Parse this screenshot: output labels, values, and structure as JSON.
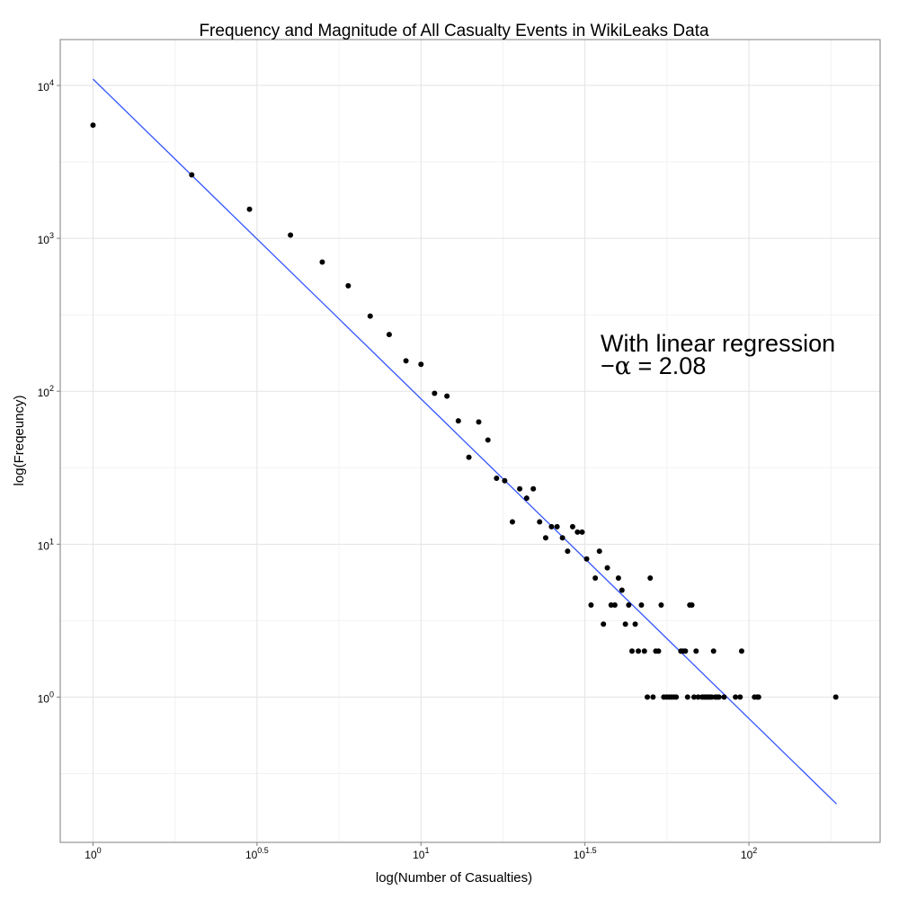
{
  "chart_data": {
    "type": "scatter",
    "title": "Frequency and Magnitude of All Casualty Events in WikiLeaks Data",
    "xlabel": "log(Number of Casualties)",
    "ylabel": "log(Freqeuncy)",
    "x_scale": "log10",
    "y_scale": "log10",
    "xlim_log10": [
      -0.1,
      2.4
    ],
    "ylim_log10": [
      -0.95,
      4.3
    ],
    "grid": true,
    "x_ticks": [
      {
        "exp": 0,
        "base": "10",
        "power": "0"
      },
      {
        "exp": 0.5,
        "base": "10",
        "power": "0.5"
      },
      {
        "exp": 1,
        "base": "10",
        "power": "1"
      },
      {
        "exp": 1.5,
        "base": "10",
        "power": "1.5"
      },
      {
        "exp": 2,
        "base": "10",
        "power": "2"
      }
    ],
    "y_ticks": [
      {
        "exp": 0,
        "base": "10",
        "power": "0"
      },
      {
        "exp": 1,
        "base": "10",
        "power": "1"
      },
      {
        "exp": 2,
        "base": "10",
        "power": "2"
      },
      {
        "exp": 3,
        "base": "10",
        "power": "3"
      },
      {
        "exp": 4,
        "base": "10",
        "power": "4"
      }
    ],
    "points": [
      [
        1,
        5500
      ],
      [
        2,
        2600
      ],
      [
        3,
        1550
      ],
      [
        4,
        1050
      ],
      [
        5,
        700
      ],
      [
        6,
        490
      ],
      [
        7,
        310
      ],
      [
        8,
        235
      ],
      [
        9,
        158
      ],
      [
        10,
        150
      ],
      [
        11,
        97
      ],
      [
        12,
        93
      ],
      [
        13,
        64
      ],
      [
        14,
        37
      ],
      [
        15,
        63
      ],
      [
        16,
        48
      ],
      [
        17,
        27
      ],
      [
        18,
        26
      ],
      [
        19,
        14
      ],
      [
        20,
        23
      ],
      [
        21,
        20
      ],
      [
        22,
        23
      ],
      [
        23,
        14
      ],
      [
        24,
        11
      ],
      [
        25,
        13
      ],
      [
        26,
        13
      ],
      [
        27,
        11
      ],
      [
        28,
        9
      ],
      [
        29,
        13
      ],
      [
        30,
        12
      ],
      [
        31,
        12
      ],
      [
        32,
        8
      ],
      [
        33,
        4
      ],
      [
        34,
        6
      ],
      [
        35,
        9
      ],
      [
        36,
        3
      ],
      [
        37,
        7
      ],
      [
        38,
        4
      ],
      [
        39,
        4
      ],
      [
        40,
        6
      ],
      [
        41,
        5
      ],
      [
        42,
        3
      ],
      [
        43,
        4
      ],
      [
        44,
        2
      ],
      [
        45,
        3
      ],
      [
        46,
        2
      ],
      [
        47,
        4
      ],
      [
        48,
        2
      ],
      [
        49,
        1
      ],
      [
        50,
        6
      ],
      [
        51,
        1
      ],
      [
        52,
        2
      ],
      [
        53,
        2
      ],
      [
        54,
        4
      ],
      [
        55,
        1
      ],
      [
        56,
        1
      ],
      [
        57,
        1
      ],
      [
        58,
        1
      ],
      [
        59,
        1
      ],
      [
        60,
        1
      ],
      [
        62,
        2
      ],
      [
        63,
        2
      ],
      [
        64,
        2
      ],
      [
        65,
        1
      ],
      [
        66,
        4
      ],
      [
        67,
        4
      ],
      [
        68,
        1
      ],
      [
        69,
        2
      ],
      [
        70,
        1
      ],
      [
        72,
        1
      ],
      [
        73,
        1
      ],
      [
        74,
        1
      ],
      [
        75,
        1
      ],
      [
        76,
        1
      ],
      [
        77,
        1
      ],
      [
        78,
        2
      ],
      [
        79,
        1
      ],
      [
        80,
        1
      ],
      [
        81,
        1
      ],
      [
        84,
        1
      ],
      [
        91,
        1
      ],
      [
        94,
        1
      ],
      [
        95,
        2
      ],
      [
        104,
        1
      ],
      [
        106,
        1
      ],
      [
        107,
        1
      ],
      [
        184,
        1
      ]
    ],
    "regression_line": {
      "x_start": 1,
      "x_end": 185,
      "y_start": 11000,
      "y_end": 0.2,
      "color": "#3355ff"
    },
    "point_color": "#000000",
    "annotation": {
      "line1": "With linear regression",
      "line2_prefix": "−",
      "line2_symbol": "α",
      "line2_suffix": " = 2.08",
      "alpha": 2.08
    }
  }
}
